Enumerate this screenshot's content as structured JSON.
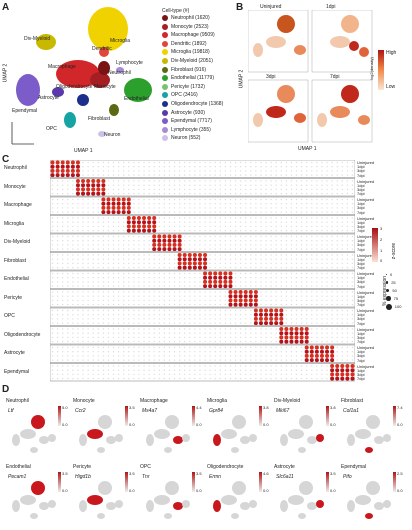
{
  "panels": {
    "A": {
      "letter": "A",
      "xaxis": "UMAP 1",
      "yaxis": "UMAP 2",
      "legend_title": "Cell-type (#)",
      "cluster_labels": [
        "Microglia",
        "Div-Myeloid",
        "Dendritic",
        "Lymphocyte",
        "Macrophage",
        "Neutrophil",
        "Monocyte",
        "Endothelial",
        "Astrocyte",
        "Oligodendrocyte",
        "Ependymal",
        "Fibroblast",
        "OPC",
        "Neuron"
      ],
      "legend": [
        {
          "label": "Neutrophil (1620)",
          "color": "#7a1414"
        },
        {
          "label": "Monocyte (2523)",
          "color": "#a41e22"
        },
        {
          "label": "Macrophage (9509)",
          "color": "#d1272b"
        },
        {
          "label": "Dendritic (1892)",
          "color": "#e0463c"
        },
        {
          "label": "Microglia (19818)",
          "color": "#f0d200"
        },
        {
          "label": "Div-Myeloid (2051)",
          "color": "#c9b800"
        },
        {
          "label": "Fibroblast (916)",
          "color": "#5a6a12"
        },
        {
          "label": "Endothelial (11779)",
          "color": "#2ca02c"
        },
        {
          "label": "Pericyte (1732)",
          "color": "#79c36a"
        },
        {
          "label": "OPC (3416)",
          "color": "#16a3a3"
        },
        {
          "label": "Oligodendrocyte (1368)",
          "color": "#1c2f8c"
        },
        {
          "label": "Astrocyte (930)",
          "color": "#5a3aa8"
        },
        {
          "label": "Ependymal (7717)",
          "color": "#7b5cc8"
        },
        {
          "label": "Lymphocyte (355)",
          "color": "#a88bd6"
        },
        {
          "label": "Neuron (552)",
          "color": "#cfc0ea"
        }
      ]
    },
    "B": {
      "letter": "B",
      "titles": [
        "Uninjured",
        "1dpi",
        "3dpi",
        "7dpi"
      ],
      "xaxis": "UMAP 1",
      "yaxis": "UMAP 2",
      "cbar_title": "log2(density)",
      "cbar_high": "High",
      "cbar_low": "Low"
    },
    "C": {
      "letter": "C",
      "rows": [
        "Neutrophil",
        "Monocyte",
        "Macrophage",
        "Microglia",
        "Div-Myeloid",
        "Fibroblast",
        "Endothelial",
        "Pericyte",
        "OPC",
        "Oligodendrocyte",
        "Astrocyte",
        "Ependymal"
      ],
      "timepoints": [
        "Uninjured",
        "1dpi",
        "3dpi",
        "7dpi"
      ],
      "zscore_title": "z-score",
      "zscore_ticks": [
        "3",
        "2",
        "1",
        "0"
      ],
      "pct_title": "% expression",
      "pct_ticks": [
        "0",
        "25",
        "50",
        "75",
        "100"
      ]
    },
    "D": {
      "letter": "D",
      "genes": [
        {
          "cell": "Neutrophil",
          "gene": "Ltf",
          "max": "5.0",
          "min": "0.0"
        },
        {
          "cell": "Monocyte",
          "gene": "Ccr2",
          "max": "3.5",
          "min": "0.0"
        },
        {
          "cell": "Macrophage",
          "gene": "Ms4a7",
          "max": "4.4",
          "min": "0.0"
        },
        {
          "cell": "Microglia",
          "gene": "Gpr84",
          "max": "3.8",
          "min": "0.0"
        },
        {
          "cell": "Div-Myeloid",
          "gene": "Mki67",
          "max": "3.8",
          "min": "0.0"
        },
        {
          "cell": "Fibroblast",
          "gene": "Col1a1",
          "max": "7.4",
          "min": "0.0"
        },
        {
          "cell": "Endothelial",
          "gene": "Pecam1",
          "max": "3.5",
          "min": "0.0"
        },
        {
          "cell": "Pericyte",
          "gene": "Higd1b",
          "max": "3.5",
          "min": "0.0"
        },
        {
          "cell": "OPC",
          "gene": "Tnr",
          "max": "3.5",
          "min": "0.0"
        },
        {
          "cell": "Oligodendrocyte",
          "gene": "Ermn",
          "max": "4.6",
          "min": "0.0"
        },
        {
          "cell": "Astrocyte",
          "gene": "Slc6a11",
          "max": "3.5",
          "min": "0.0"
        },
        {
          "cell": "Ependymal",
          "gene": "Pifo",
          "max": "2.5",
          "min": "0.0"
        }
      ]
    }
  }
}
